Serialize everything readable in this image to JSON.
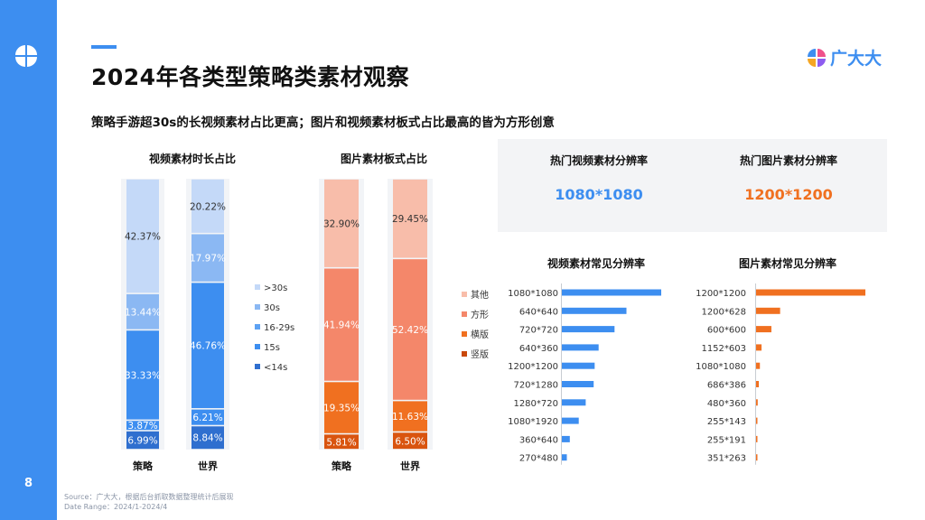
{
  "page": {
    "title": "2024年各类型策略类素材观察",
    "subtitle": "策略手游超30s的长视频素材占比更高；图片和视频素材板式占比最高的皆为方形创意",
    "page_number": "8",
    "brand": "广大大",
    "source_line1": "Source：广大大，根据后台抓取数据整理统计后展现",
    "source_line2": "Date Range：2024/1-2024/4",
    "accent_color": "#3d8ef0",
    "orange_color": "#f07020"
  },
  "panel": {
    "video_label": "热门视频素材分辨率",
    "video_value": "1080*1080",
    "image_label": "热门图片素材分辨率",
    "image_value": "1200*1200"
  },
  "chart_data": [
    {
      "type": "bar",
      "stacked": true,
      "title": "视频素材时长占比",
      "categories": [
        "策略",
        "世界"
      ],
      "series": [
        {
          "name": "<14s",
          "values": [
            6.99,
            8.84
          ],
          "labels": [
            "6.99%",
            "8.84%"
          ],
          "color": "#2f6fcf"
        },
        {
          "name": "15s",
          "values": [
            3.87,
            6.21
          ],
          "labels": [
            "3.87%",
            "6.21%"
          ],
          "color": "#3d8ef0"
        },
        {
          "name": "16-29s",
          "values": [
            33.33,
            46.76
          ],
          "labels": [
            "33.33%",
            "46.76%"
          ],
          "color": "#3d8ef0"
        },
        {
          "name": "30s",
          "values": [
            13.44,
            17.97
          ],
          "labels": [
            "13.44%",
            "17.97%"
          ],
          "color": "#8bb8f3"
        },
        {
          "name": ">30s",
          "values": [
            42.37,
            20.22
          ],
          "labels": [
            "42.37%",
            "20.22%"
          ],
          "color": "#c4d9f8"
        }
      ],
      "legend_order": [
        ">30s",
        "30s",
        "16-29s",
        "15s",
        "<14s"
      ],
      "legend_colors": [
        "#c4d9f8",
        "#8bb8f3",
        "#5da2f3",
        "#3d8ef0",
        "#2f6fcf"
      ],
      "legend_position": "right"
    },
    {
      "type": "bar",
      "stacked": true,
      "title": "图片素材板式占比",
      "categories": [
        "策略",
        "世界"
      ],
      "series": [
        {
          "name": "竖版",
          "values": [
            5.81,
            6.5
          ],
          "labels": [
            "5.81%",
            "6.50%"
          ],
          "color": "#d9540f"
        },
        {
          "name": "横版",
          "values": [
            19.35,
            11.63
          ],
          "labels": [
            "19.35%",
            "11.63%"
          ],
          "color": "#f07020"
        },
        {
          "name": "方形",
          "values": [
            41.94,
            52.42
          ],
          "labels": [
            "41.94%",
            "52.42%"
          ],
          "color": "#f4876a"
        },
        {
          "name": "其他",
          "values": [
            32.9,
            29.45
          ],
          "labels": [
            "32.90%",
            "29.45%"
          ],
          "color": "#f8bdaa"
        }
      ],
      "legend_order": [
        "其他",
        "方形",
        "横版",
        "竖版"
      ],
      "legend_colors": [
        "#f8bdaa",
        "#f4876a",
        "#f07020",
        "#c9480a"
      ],
      "legend_position": "right"
    },
    {
      "type": "bar",
      "orientation": "horizontal",
      "title": "视频素材常见分辨率",
      "categories": [
        "1080*1080",
        "640*640",
        "720*720",
        "640*360",
        "1200*1200",
        "720*1280",
        "1280*720",
        "1080*1920",
        "360*640",
        "270*480"
      ],
      "values": [
        100,
        65,
        53,
        37,
        33,
        32,
        24,
        17,
        8,
        5
      ],
      "color": "#3d8ef0"
    },
    {
      "type": "bar",
      "orientation": "horizontal",
      "title": "图片素材常见分辨率",
      "categories": [
        "1200*1200",
        "1200*628",
        "600*600",
        "1152*603",
        "1080*1080",
        "686*386",
        "480*360",
        "255*143",
        "255*191",
        "351*263"
      ],
      "values": [
        100,
        22,
        14,
        5,
        3.5,
        2.5,
        1.5,
        1.0,
        0.8,
        0.6
      ],
      "color": "#f07020"
    }
  ]
}
